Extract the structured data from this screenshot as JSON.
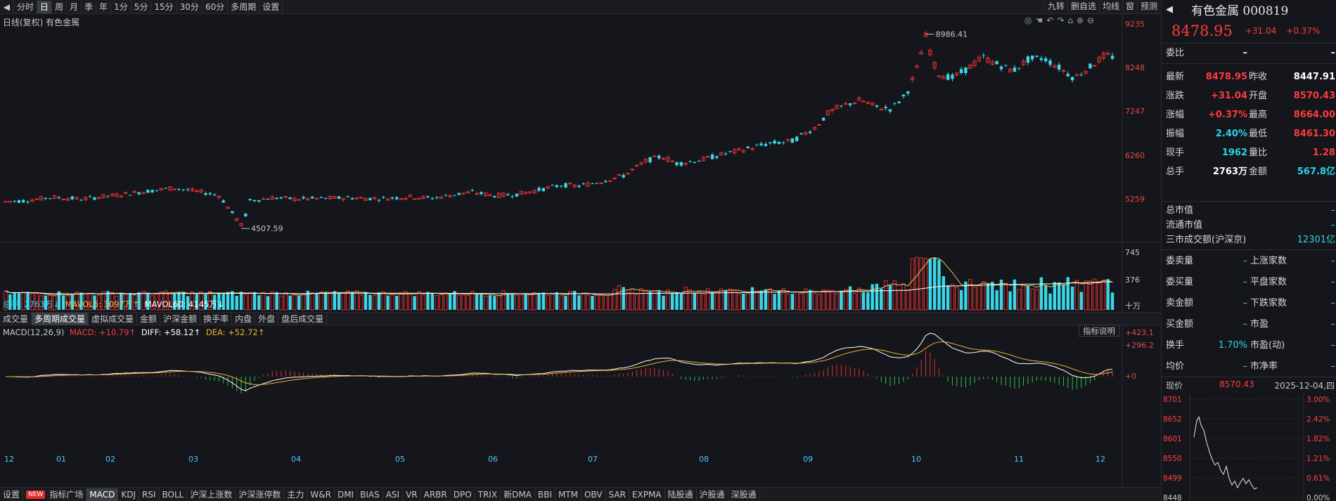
{
  "toolbar": {
    "nav_left": "◀",
    "items": [
      "分时",
      "日",
      "周",
      "月",
      "季",
      "年",
      "1分",
      "5分",
      "15分",
      "30分",
      "60分",
      "多周期",
      "设置"
    ],
    "active_index": 1,
    "right_items": [
      "九转",
      "删自选",
      "均线",
      "窗",
      "预测"
    ],
    "nav_right": "◀"
  },
  "chart": {
    "title_line": "日线(复权)  有色金属",
    "y_ticks": [
      "9235",
      "8248",
      "7247",
      "6260",
      "5259"
    ],
    "high_label": "8986.41",
    "low_label": "4507.59",
    "icons": [
      "eye-icon",
      "hand-icon",
      "undo-icon",
      "redo-icon",
      "lock-icon",
      "zoom-in-icon",
      "zoom-out-icon"
    ]
  },
  "volume": {
    "legend_total": "总手: 2763万↓",
    "legend_ma5": "MAVOL5: 3097万↑",
    "legend_ma60": "MAVOL60: 4145万↓",
    "y_ticks": [
      "745",
      "376"
    ],
    "unit": "十万"
  },
  "vol_tabs": [
    "成交量",
    "多周期成交量",
    "虚拟成交量",
    "金额",
    "沪深金额",
    "换手率",
    "内盘",
    "外盘",
    "盘后成交量"
  ],
  "vol_tabs_active": 1,
  "macd": {
    "legend_name": "MACD(12,26,9)",
    "legend_macd": "MACD: +10.79↑",
    "legend_diff": "DIFF: +58.12↑",
    "legend_dea": "DEA: +52.72↑",
    "help": "指标说明",
    "y_ticks": [
      "+423.1",
      "+296.2",
      "+0"
    ]
  },
  "x_axis": [
    "12",
    "01",
    "02",
    "03",
    "04",
    "05",
    "06",
    "07",
    "08",
    "09",
    "10",
    "11",
    "12"
  ],
  "bottom_tabs": [
    "设置",
    "NEW",
    "指标广场",
    "MACD",
    "KDJ",
    "RSI",
    "BOLL",
    "沪深上涨数",
    "沪深涨停数",
    "主力",
    "W&R",
    "DMI",
    "BIAS",
    "ASI",
    "VR",
    "ARBR",
    "DPO",
    "TRIX",
    "新DMA",
    "BBI",
    "MTM",
    "OBV",
    "SAR",
    "EXPMA",
    "陆股通",
    "沪股通",
    "深股通"
  ],
  "bottom_active": "MACD",
  "side": {
    "name": "有色金属 000819",
    "price": "8478.95",
    "change": "+31.04",
    "pct": "+0.37%",
    "weibi_label": "委比",
    "weibi_val": "–",
    "weibi_val2": "–",
    "rows": [
      {
        "l": "最新",
        "v": "8478.95",
        "vc": "red",
        "l2": "昨收",
        "v2": "8447.91",
        "v2c": "white"
      },
      {
        "l": "涨跌",
        "v": "+31.04",
        "vc": "red",
        "l2": "开盘",
        "v2": "8570.43",
        "v2c": "red"
      },
      {
        "l": "涨幅",
        "v": "+0.37%",
        "vc": "red",
        "l2": "最高",
        "v2": "8664.00",
        "v2c": "red"
      },
      {
        "l": "振幅",
        "v": "2.40%",
        "vc": "cyan",
        "l2": "最低",
        "v2": "8461.30",
        "v2c": "red"
      },
      {
        "l": "现手",
        "v": "1962",
        "vc": "cyan",
        "l2": "量比",
        "v2": "1.28",
        "v2c": "red"
      },
      {
        "l": "总手",
        "v": "2763万",
        "vc": "white",
        "l2": "金额",
        "v2": "567.8亿",
        "v2c": "cyan"
      }
    ],
    "rows2": [
      {
        "l": "总市值",
        "v": "–"
      },
      {
        "l": "流通市值",
        "v": "–"
      },
      {
        "l": "三市成交额(沪深京)",
        "v": "12301亿"
      }
    ],
    "rows3": [
      {
        "l": "委卖量",
        "v": "–",
        "l2": "上涨家数",
        "v2": "–"
      },
      {
        "l": "委买量",
        "v": "–",
        "l2": "平盘家数",
        "v2": "–"
      },
      {
        "l": "卖金额",
        "v": "–",
        "l2": "下跌家数",
        "v2": "–"
      },
      {
        "l": "买金额",
        "v": "–",
        "l2": "市盈",
        "v2": "–"
      },
      {
        "l": "换手",
        "v": "1.70%",
        "l2": "市盈(动)",
        "v2": "–"
      },
      {
        "l": "均价",
        "v": "–",
        "l2": "市净率",
        "v2": "–"
      }
    ],
    "mini_label": "现价",
    "mini_price": "8570.43",
    "mini_date": "2025-12-04,四",
    "mini_left": [
      "8701",
      "8652",
      "8601",
      "8550",
      "8499",
      "8448"
    ],
    "mini_right": [
      "3.00%",
      "2.42%",
      "1.82%",
      "1.21%",
      "0.61%",
      "0.00%"
    ]
  },
  "colors": {
    "up": "#e03030",
    "down": "#3ad7e8",
    "bg": "#14161b"
  }
}
